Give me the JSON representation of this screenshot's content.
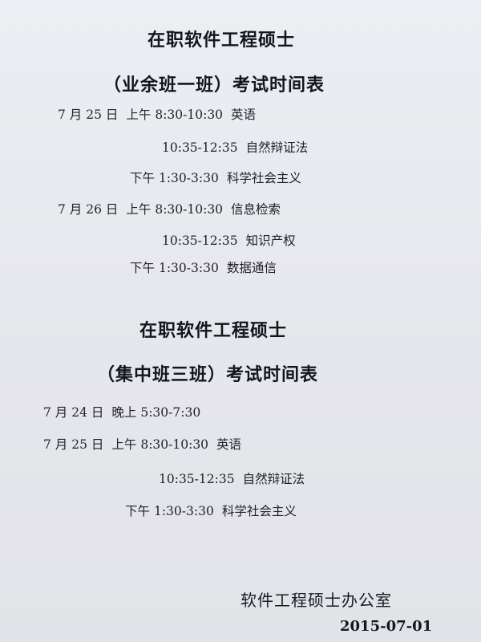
{
  "section1": {
    "title": "在职软件工程硕士",
    "subtitle": "（业余班一班）考试时间表",
    "rows": [
      {
        "date": "7 月 25 日",
        "period": "上午",
        "time": "8:30-10:30",
        "subject": "英语"
      },
      {
        "date": "",
        "period": "",
        "time": "10:35-12:35",
        "subject": "自然辩证法"
      },
      {
        "date": "",
        "period": "下午",
        "time": "1:30-3:30",
        "subject": "科学社会主义"
      },
      {
        "date": "7 月 26 日",
        "period": "上午",
        "time": "8:30-10:30",
        "subject": "信息检索"
      },
      {
        "date": "",
        "period": "",
        "time": "10:35-12:35",
        "subject": "知识产权"
      },
      {
        "date": "",
        "period": "下午",
        "time": "1:30-3:30",
        "subject": "数据通信"
      }
    ]
  },
  "section2": {
    "title": "在职软件工程硕士",
    "subtitle": "（集中班三班）考试时间表",
    "rows": [
      {
        "date": "7 月 24 日",
        "period": "晚上",
        "time": "5:30-7:30",
        "subject": ""
      },
      {
        "date": "7 月 25 日",
        "period": "上午",
        "time": "8:30-10:30",
        "subject": "英语"
      },
      {
        "date": "",
        "period": "",
        "time": "10:35-12:35",
        "subject": "自然辩证法"
      },
      {
        "date": "",
        "period": "下午",
        "time": "1:30-3:30",
        "subject": "科学社会主义"
      }
    ]
  },
  "footer": {
    "office": "软件工程硕士办公室",
    "date": "2015-07-01"
  }
}
